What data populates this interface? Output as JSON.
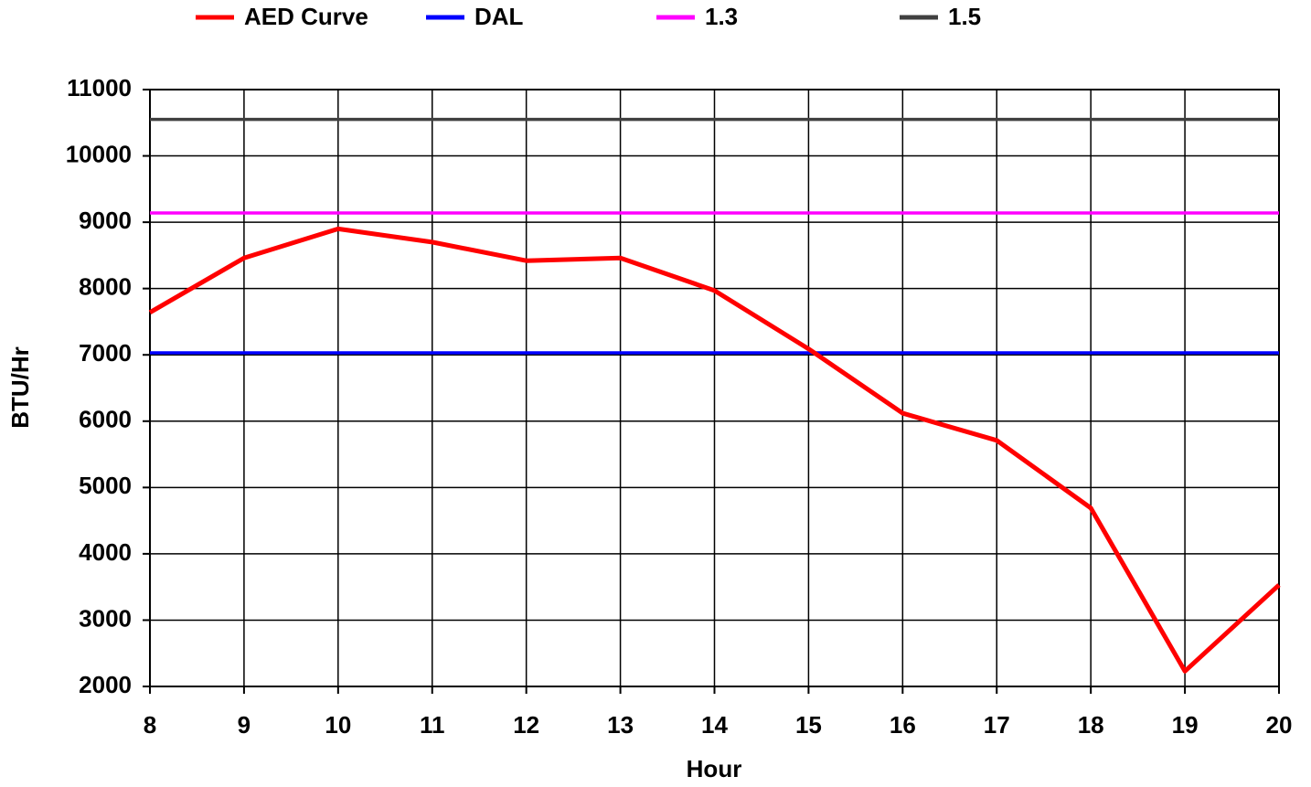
{
  "chart_data": {
    "type": "line",
    "x_label": "Hour",
    "y_label": "BTU/Hr",
    "x": [
      8,
      9,
      10,
      11,
      12,
      13,
      14,
      15,
      16,
      17,
      18,
      19,
      20
    ],
    "series": [
      {
        "name": "AED Curve",
        "color": "#ff0000",
        "values": [
          7640,
          8460,
          8900,
          8700,
          8420,
          8460,
          7970,
          7090,
          6120,
          5710,
          4690,
          2230,
          3530
        ]
      },
      {
        "name": "DAL",
        "color": "#0000ff",
        "values": [
          7030,
          7030,
          7030,
          7030,
          7030,
          7030,
          7030,
          7030,
          7030,
          7030,
          7030,
          7030,
          7030
        ]
      },
      {
        "name": "1.3",
        "color": "#ff00ff",
        "values": [
          9140,
          9140,
          9140,
          9140,
          9140,
          9140,
          9140,
          9140,
          9140,
          9140,
          9140,
          9140,
          9140
        ]
      },
      {
        "name": "1.5",
        "color": "#404040",
        "values": [
          10550,
          10550,
          10550,
          10550,
          10550,
          10550,
          10550,
          10550,
          10550,
          10550,
          10550,
          10550,
          10550
        ]
      }
    ],
    "xlim": [
      8,
      20
    ],
    "xticks": [
      8,
      9,
      10,
      11,
      12,
      13,
      14,
      15,
      16,
      17,
      18,
      19,
      20
    ],
    "ylim": [
      2000,
      11000
    ],
    "yticks": [
      2000,
      3000,
      4000,
      5000,
      6000,
      7000,
      8000,
      9000,
      10000,
      11000
    ],
    "grid": true,
    "legend": "top"
  }
}
